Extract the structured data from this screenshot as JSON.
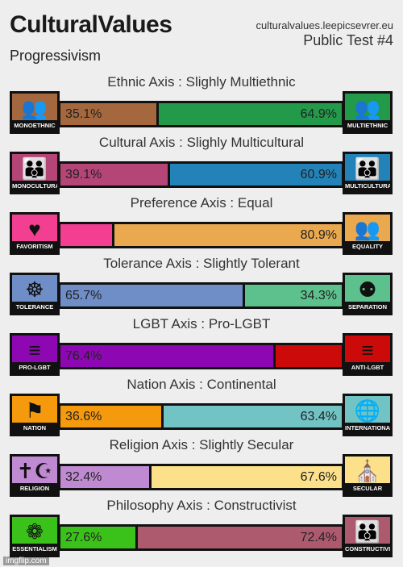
{
  "header": {
    "title": "CulturalValues",
    "subtitle": "Progressivism",
    "site": "culturalvalues.leepicsevrer.eu",
    "test": "Public Test #4"
  },
  "axes": [
    {
      "title": "Ethnic Axis : Slighly Multiethnic",
      "left_label": "MONOETHNIC",
      "right_label": "MULTIETHNIC",
      "left_icon": "crowd-icon",
      "right_icon": "crowd-icon",
      "left_glyph": "👥",
      "right_glyph": "👥",
      "left_pct": "35.1%",
      "right_pct": "64.9%",
      "left_value": 35.1,
      "right_value": 64.9,
      "left_color": "#a5683e",
      "right_color": "#229a4a",
      "left_icon_color": "#a5683e",
      "right_icon_color": "#229a4a"
    },
    {
      "title": "Cultural Axis : Slighly Multicultural",
      "left_label": "MONOCULTURAL",
      "right_label": "MULTICULTURAL",
      "left_icon": "group-icon",
      "right_icon": "group-icon",
      "left_glyph": "👪",
      "right_glyph": "👪",
      "left_pct": "39.1%",
      "right_pct": "60.9%",
      "left_value": 39.1,
      "right_value": 60.9,
      "left_color": "#b54577",
      "right_color": "#2383b8",
      "left_icon_color": "#b54577",
      "right_icon_color": "#2383b8"
    },
    {
      "title": "Preference Axis : Equal",
      "left_label": "FAVORITISM",
      "right_label": "EQUALITY",
      "left_icon": "heart-person-icon",
      "right_icon": "three-people-icon",
      "left_glyph": "♥",
      "right_glyph": "👥",
      "left_pct": "",
      "right_pct": "80.9%",
      "left_value": 19.1,
      "right_value": 80.9,
      "left_color": "#f23f92",
      "right_color": "#eaa94f",
      "left_icon_color": "#f23f92",
      "right_icon_color": "#eaa94f"
    },
    {
      "title": "Tolerance Axis : Slightly Tolerant",
      "left_label": "TOLERANCE",
      "right_label": "SEPARATION",
      "left_icon": "globe-people-icon",
      "right_icon": "separated-people-icon",
      "left_glyph": "☸",
      "right_glyph": "⚉",
      "left_pct": "65.7%",
      "right_pct": "34.3%",
      "left_value": 65.7,
      "right_value": 34.3,
      "left_color": "#6f8dc6",
      "right_color": "#5cc18c",
      "left_icon_color": "#6f8dc6",
      "right_icon_color": "#5cc18c"
    },
    {
      "title": "LGBT Axis : Pro-LGBT",
      "left_label": "PRO-LGBT",
      "right_label": "ANTI-LGBT",
      "left_icon": "pride-flag-icon",
      "right_icon": "crossed-flag-icon",
      "left_glyph": "≡",
      "right_glyph": "≡",
      "left_pct": "76.4%",
      "right_pct": "",
      "left_value": 76.4,
      "right_value": 23.6,
      "left_color": "#8d08b3",
      "right_color": "#cc0a0a",
      "left_icon_color": "#8d08b3",
      "right_icon_color": "#cc0a0a"
    },
    {
      "title": "Nation Axis : Continental",
      "left_label": "NATION",
      "right_label": "INTERNATIONAL",
      "left_icon": "flag-icon",
      "right_icon": "globe-icon",
      "left_glyph": "⚑",
      "right_glyph": "🌐",
      "left_pct": "36.6%",
      "right_pct": "63.4%",
      "left_value": 36.6,
      "right_value": 63.4,
      "left_color": "#f59a0c",
      "right_color": "#72c3c4",
      "left_icon_color": "#f59a0c",
      "right_icon_color": "#72c3c4"
    },
    {
      "title": "Religion Axis : Slightly Secular",
      "left_label": "RELIGION",
      "right_label": "SECULAR",
      "left_icon": "religious-symbols-icon",
      "right_icon": "buildings-icon",
      "left_glyph": "✝☪",
      "right_glyph": "⛪",
      "left_pct": "32.4%",
      "right_pct": "67.6%",
      "left_value": 32.4,
      "right_value": 67.6,
      "left_color": "#c08ad2",
      "right_color": "#fde08a",
      "left_icon_color": "#c08ad2",
      "right_icon_color": "#fde08a"
    },
    {
      "title": "Philosophy Axis : Constructivist",
      "left_label": "ESSENTIALISM",
      "right_label": "CONSTRUCTIVISM",
      "left_icon": "flower-icon",
      "right_icon": "family-icon",
      "left_glyph": "❁",
      "right_glyph": "👪",
      "left_pct": "27.6%",
      "right_pct": "72.4%",
      "left_value": 27.6,
      "right_value": 72.4,
      "left_color": "#3bc21a",
      "right_color": "#ad5a6f",
      "left_icon_color": "#3bc21a",
      "right_icon_color": "#ad5a6f"
    }
  ],
  "watermark": "imgflip.com"
}
